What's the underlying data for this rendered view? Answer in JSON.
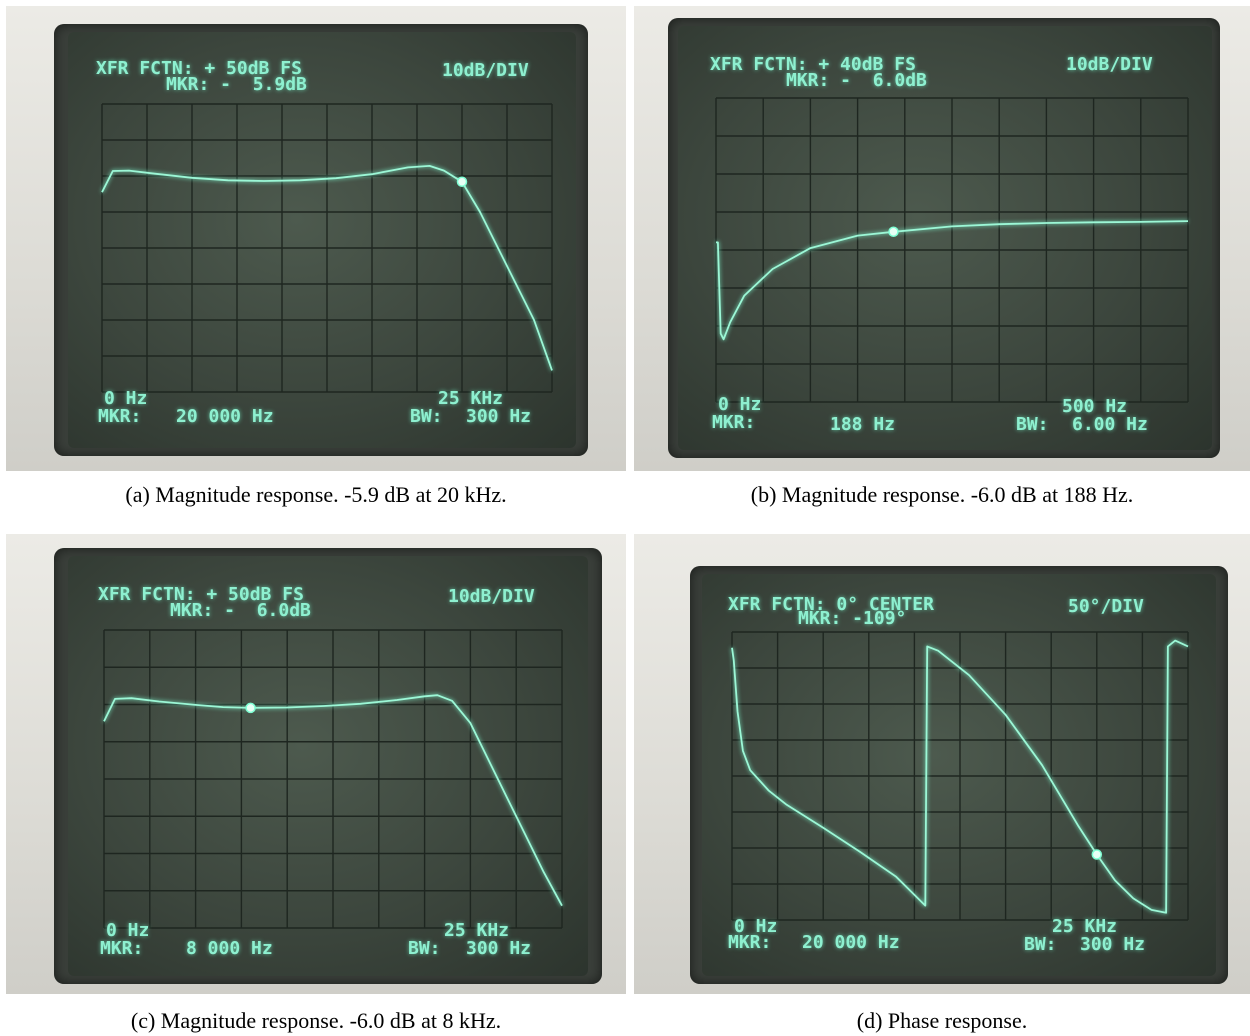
{
  "chart_data": [
    {
      "type": "line",
      "panel": "a",
      "header_line1": "XFR FCTN: + 50dB FS",
      "header_line2": "MKR: -  5.9dB",
      "scale": "10dB/DIV",
      "x_start": "0 Hz",
      "x_end": "25 KHz",
      "marker_freq": "20 000 Hz",
      "bw": "300 Hz",
      "marker_prefix": "MKR:",
      "bw_prefix": "BW:",
      "caption": "(a)   Magnitude response. -5.9 dB at 20 kHz.",
      "xlim": [
        0,
        25000
      ],
      "ylim": [
        -80,
        0
      ],
      "x": [
        0,
        600,
        1500,
        3000,
        5000,
        7000,
        9000,
        11000,
        13000,
        15000,
        17000,
        18200,
        19000,
        20000,
        21000,
        22000,
        23000,
        24000,
        25000
      ],
      "y": [
        -24.5,
        -18.6,
        -18.5,
        -19.4,
        -20.5,
        -21.2,
        -21.4,
        -21.2,
        -20.6,
        -19.5,
        -17.6,
        -17.2,
        -18.5,
        -21.6,
        -30,
        -40,
        -50,
        -60,
        -74
      ],
      "marker": {
        "x": 20000,
        "y": -21.6
      }
    },
    {
      "type": "line",
      "panel": "b",
      "header_line1": "XFR FCTN: + 40dB FS",
      "header_line2": "MKR: -  6.0dB",
      "scale": "10dB/DIV",
      "x_start": "0 Hz",
      "x_end": "500 Hz",
      "marker_freq": "188 Hz",
      "bw": "6.00 Hz",
      "marker_prefix": "MKR:",
      "bw_prefix": "BW:",
      "caption": "(b) Magnitude response. -6.0 dB at 188 Hz.",
      "xlim": [
        0,
        500
      ],
      "ylim": [
        -80,
        0
      ],
      "x": [
        0,
        2,
        5,
        8,
        15,
        30,
        60,
        100,
        150,
        188,
        250,
        300,
        350,
        400,
        450,
        500
      ],
      "y": [
        -38,
        -38,
        -62,
        -63.5,
        -59,
        -52,
        -45,
        -39.5,
        -36.2,
        -35.2,
        -33.8,
        -33.2,
        -32.9,
        -32.7,
        -32.6,
        -32.4
      ],
      "marker": {
        "x": 188,
        "y": -35.2
      }
    },
    {
      "type": "line",
      "panel": "c",
      "header_line1": "XFR FCTN: + 50dB FS",
      "header_line2": "MKR: -  6.0dB",
      "scale": "10dB/DIV",
      "x_start": "0 Hz",
      "x_end": "25 KHz",
      "marker_freq": "8 000 Hz",
      "bw": "300 Hz",
      "marker_prefix": "MKR:",
      "bw_prefix": "BW:",
      "caption": "(c) Magnitude response. -6.0 dB at 8 kHz.",
      "xlim": [
        0,
        25000
      ],
      "ylim": [
        -80,
        0
      ],
      "x": [
        0,
        600,
        1500,
        3000,
        5000,
        6500,
        8000,
        10000,
        12000,
        14000,
        16000,
        17500,
        18200,
        19000,
        20000,
        21000,
        22000,
        23000,
        24000,
        25000
      ],
      "y": [
        -24.5,
        -18.5,
        -18.3,
        -19.2,
        -20.1,
        -20.7,
        -20.9,
        -20.8,
        -20.4,
        -19.8,
        -18.8,
        -17.8,
        -17.5,
        -19,
        -25,
        -35,
        -45,
        -55,
        -65,
        -74
      ],
      "marker": {
        "x": 8000,
        "y": -20.9
      }
    },
    {
      "type": "line",
      "panel": "d",
      "header_line1": "XFR FCTN: 0° CENTER",
      "header_line2": "MKR: -109°",
      "scale": "50°/DIV",
      "x_start": "0 Hz",
      "x_end": "25 KHz",
      "marker_freq": "20 000 Hz",
      "bw": "300 Hz",
      "marker_prefix": "MKR:",
      "bw_prefix": "BW:",
      "caption": "(d) Phase response.",
      "xlim": [
        0,
        25000
      ],
      "ylim": [
        -200,
        200
      ],
      "x": [
        0,
        100,
        300,
        600,
        1000,
        2000,
        3000,
        5000,
        7000,
        9000,
        10600,
        10700,
        11300,
        13000,
        15000,
        17000,
        19000,
        20000,
        21000,
        22000,
        23000,
        23800,
        23900,
        24300,
        25000
      ],
      "y": [
        178,
        160,
        90,
        35,
        8,
        -20,
        -40,
        -72,
        -105,
        -140,
        -180,
        180,
        174,
        140,
        85,
        15,
        -70,
        -109,
        -145,
        -170,
        -186,
        -190,
        180,
        188,
        180
      ],
      "marker": {
        "x": 20000,
        "y": -109
      }
    }
  ]
}
